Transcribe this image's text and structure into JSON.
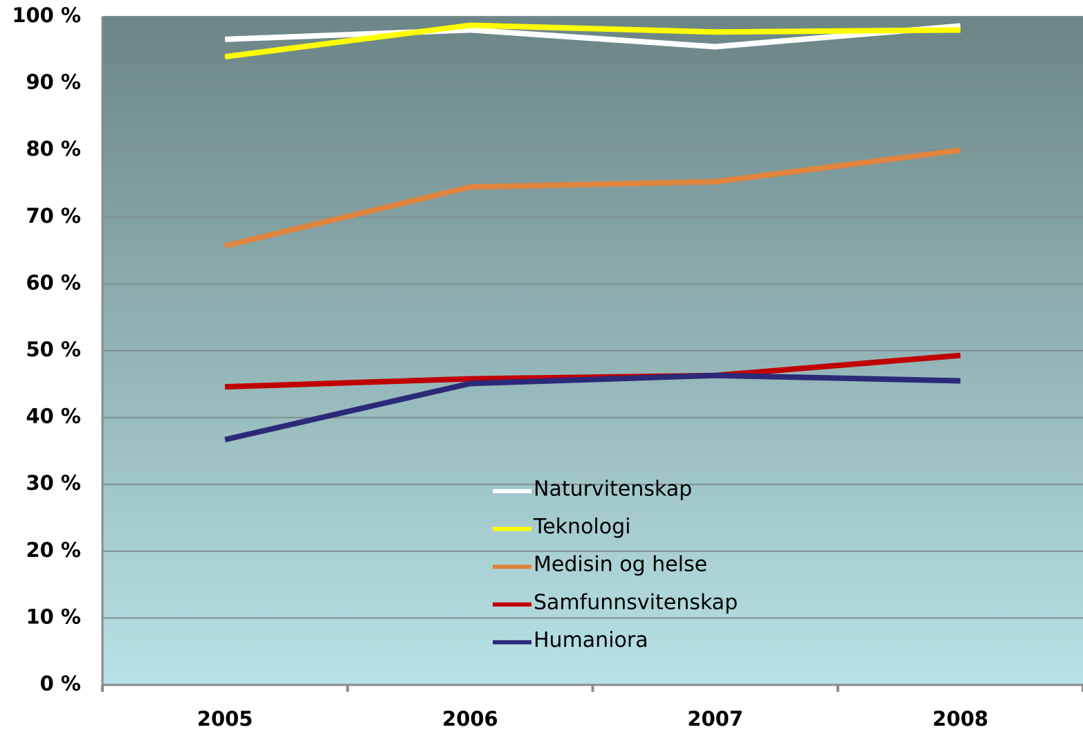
{
  "chart_data": {
    "type": "line",
    "categories": [
      "2005",
      "2006",
      "2007",
      "2008"
    ],
    "series": [
      {
        "name": "Naturvitenskap",
        "color": "#ffffff",
        "values": [
          96.6,
          98.0,
          95.5,
          98.6
        ]
      },
      {
        "name": "Teknologi",
        "color": "#ffff00",
        "values": [
          94.0,
          98.7,
          97.7,
          98.0
        ]
      },
      {
        "name": "Medisin og helse",
        "color": "#e0843e",
        "values": [
          65.7,
          74.5,
          75.3,
          80.0
        ]
      },
      {
        "name": "Samfunnsvitenskap",
        "color": "#c00000",
        "values": [
          44.6,
          45.8,
          46.3,
          49.3
        ]
      },
      {
        "name": "Humaniora",
        "color": "#2b2a78",
        "values": [
          36.7,
          45.1,
          46.3,
          45.5
        ]
      }
    ],
    "ylim": [
      0,
      100
    ],
    "yticks": [
      {
        "value": 0,
        "label": "0 %"
      },
      {
        "value": 10,
        "label": "10 %"
      },
      {
        "value": 20,
        "label": "20 %"
      },
      {
        "value": 30,
        "label": "30 %"
      },
      {
        "value": 40,
        "label": "40 %"
      },
      {
        "value": 50,
        "label": "50 %"
      },
      {
        "value": 60,
        "label": "60 %"
      },
      {
        "value": 70,
        "label": "70 %"
      },
      {
        "value": 80,
        "label": "80 %"
      },
      {
        "value": 90,
        "label": "90 %"
      },
      {
        "value": 100,
        "label": "100 %"
      }
    ],
    "grid": true,
    "legend": "lower center"
  }
}
